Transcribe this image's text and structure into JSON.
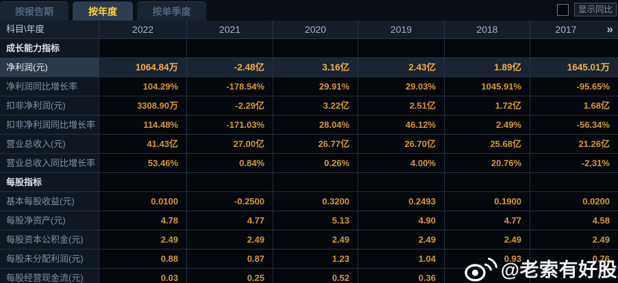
{
  "tabs": [
    {
      "label": "按报告期",
      "active": false
    },
    {
      "label": "按年度",
      "active": true
    },
    {
      "label": "按单季度",
      "active": false
    }
  ],
  "controls": {
    "show_yoy_label": "显示同比",
    "show_yoy_checked": false
  },
  "table": {
    "corner_header": "科目\\年度",
    "years": [
      "2022",
      "2021",
      "2020",
      "2019",
      "2018",
      "2017"
    ],
    "more_icon": "»",
    "rows": [
      {
        "type": "section",
        "label": "成长能力指标",
        "values": [
          "",
          "",
          "",
          "",
          "",
          ""
        ]
      },
      {
        "type": "data",
        "highlight": true,
        "label": "净利润(元)",
        "values": [
          "1064.84万",
          "-2.48亿",
          "3.16亿",
          "2.43亿",
          "1.89亿",
          "1645.01万"
        ]
      },
      {
        "type": "data",
        "label": "净利润同比增长率",
        "values": [
          "104.29%",
          "-178.54%",
          "29.91%",
          "29.03%",
          "1045.91%",
          "-95.65%"
        ]
      },
      {
        "type": "data",
        "label": "扣非净利润(元)",
        "values": [
          "3308.90万",
          "-2.29亿",
          "3.22亿",
          "2.51亿",
          "1.72亿",
          "1.68亿"
        ]
      },
      {
        "type": "data",
        "label": "扣非净利润同比增长率",
        "values": [
          "114.48%",
          "-171.03%",
          "28.04%",
          "46.12%",
          "2.49%",
          "-56.34%"
        ]
      },
      {
        "type": "data",
        "label": "营业总收入(元)",
        "values": [
          "41.43亿",
          "27.00亿",
          "26.77亿",
          "26.70亿",
          "25.68亿",
          "21.26亿"
        ]
      },
      {
        "type": "data",
        "label": "营业总收入同比增长率",
        "values": [
          "53.46%",
          "0.84%",
          "0.26%",
          "4.00%",
          "20.76%",
          "-2.31%"
        ]
      },
      {
        "type": "section",
        "label": "每股指标",
        "values": [
          "",
          "",
          "",
          "",
          "",
          ""
        ]
      },
      {
        "type": "data",
        "label": "基本每股收益(元)",
        "values": [
          "0.0100",
          "-0.2500",
          "0.3200",
          "0.2493",
          "0.1900",
          "0.0200"
        ]
      },
      {
        "type": "data",
        "label": "每股净资产(元)",
        "values": [
          "4.78",
          "4.77",
          "5.13",
          "4.90",
          "4.77",
          "4.58"
        ]
      },
      {
        "type": "data",
        "label": "每股资本公积金(元)",
        "values": [
          "2.49",
          "2.49",
          "2.49",
          "2.49",
          "2.49",
          "2.49"
        ]
      },
      {
        "type": "data",
        "label": "每股未分配利润(元)",
        "values": [
          "0.88",
          "0.87",
          "1.23",
          "1.04",
          "0.93",
          "0.76"
        ]
      },
      {
        "type": "data",
        "label": "每股经营现金流(元)",
        "values": [
          "0.03",
          "0.25",
          "0.52",
          "0.36",
          "",
          ""
        ]
      }
    ]
  },
  "watermark": {
    "handle": "@老索有好股"
  },
  "colors": {
    "accent_gold": "#ffd23e",
    "value_orange": "#d89a31",
    "highlight_value_orange": "#f3b042",
    "highlight_row_bg": "#1a2433",
    "grid_line": "#263240"
  }
}
